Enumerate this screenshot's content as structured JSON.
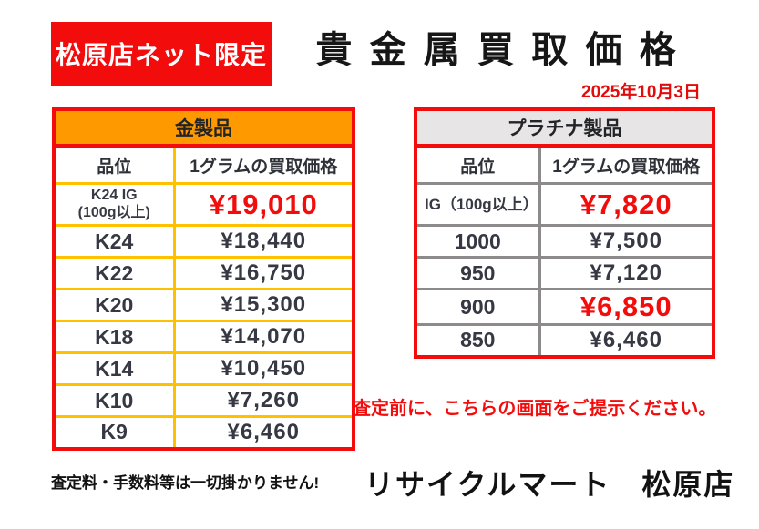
{
  "header": {
    "badge": "松原店ネット限定",
    "title": "貴金属買取価格",
    "date": "2025年10月3日"
  },
  "gold_table": {
    "title": "金製品",
    "columns": [
      "品位",
      "1グラムの買取価格"
    ],
    "rows": [
      {
        "grade": "K24 IG",
        "grade_sub": "(100g以上)",
        "price": "¥19,010",
        "highlight": true
      },
      {
        "grade": "K24",
        "price": "¥18,440",
        "highlight": false
      },
      {
        "grade": "K22",
        "price": "¥16,750",
        "highlight": false
      },
      {
        "grade": "K20",
        "price": "¥15,300",
        "highlight": false
      },
      {
        "grade": "K18",
        "price": "¥14,070",
        "highlight": false
      },
      {
        "grade": "K14",
        "price": "¥10,450",
        "highlight": false
      },
      {
        "grade": "K10",
        "price": "¥7,260",
        "highlight": false
      },
      {
        "grade": "K9",
        "price": "¥6,460",
        "highlight": false
      }
    ]
  },
  "platinum_table": {
    "title": "プラチナ製品",
    "columns": [
      "品位",
      "1グラムの買取価格"
    ],
    "rows": [
      {
        "grade": "IG（100g以上）",
        "price": "¥7,820",
        "highlight": true
      },
      {
        "grade": "1000",
        "price": "¥7,500",
        "highlight": false
      },
      {
        "grade": "950",
        "price": "¥7,120",
        "highlight": false
      },
      {
        "grade": "900",
        "price": "¥6,850",
        "highlight": true
      },
      {
        "grade": "850",
        "price": "¥6,460",
        "highlight": false
      }
    ]
  },
  "footer": {
    "notice": "査定前に、こちらの画面をご提示ください。",
    "fee_note": "査定料・手数料等は一切掛かりません!",
    "store_name": "リサイクルマート　松原店"
  },
  "colors": {
    "accent_red": "#F20C0C",
    "gold_header_bg": "#FF9900",
    "gold_border": "#FFC000",
    "platinum_header_bg": "#E7E5E5",
    "platinum_border": "#8C8A8A",
    "price_text": "#363943",
    "highlight_price_text": "#F20C0C",
    "badge_bg": "#F20C0C",
    "badge_text": "#FFFFFF"
  }
}
